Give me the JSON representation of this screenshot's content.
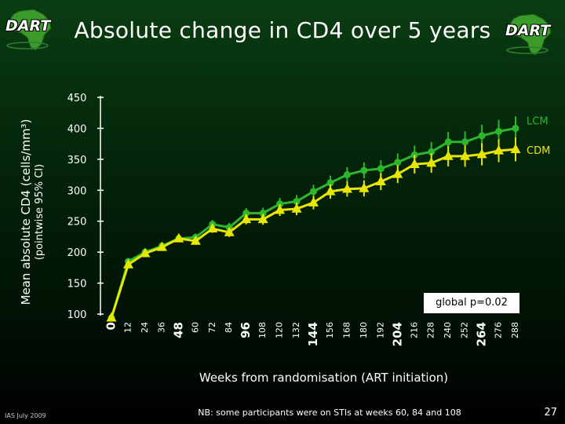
{
  "slide": {
    "title": "Absolute change in CD4 over 5 years",
    "logo_text": "DART",
    "footer_left": "IAS July 2009",
    "footer_note": "NB: some participants were on STIs at weeks 60, 84 and 108",
    "page_number": "27"
  },
  "chart_data": {
    "type": "line",
    "title": "Absolute change in CD4 over 5 years",
    "xlabel": "Weeks from randomisation (ART initiation)",
    "ylabel": "Mean absolute CD4 (cells/mm³)",
    "ylabel_sub": "(pointwise 95% CI)",
    "ylim": [
      100,
      450
    ],
    "yticks": [
      100,
      150,
      200,
      250,
      300,
      350,
      400,
      450
    ],
    "x": [
      0,
      12,
      24,
      36,
      48,
      60,
      72,
      84,
      96,
      108,
      120,
      132,
      144,
      156,
      168,
      180,
      192,
      204,
      216,
      228,
      240,
      252,
      264,
      276,
      288
    ],
    "xtick_labels": [
      "0",
      "12",
      "24",
      "36",
      "48",
      "60",
      "72",
      "84",
      "96",
      "108",
      "120",
      "132",
      "144",
      "156",
      "168",
      "180",
      "192",
      "204",
      "216",
      "228",
      "240",
      "252",
      "264",
      "276",
      "288"
    ],
    "xticks_bold": [
      "0",
      "48",
      "96",
      "144",
      "204",
      "264"
    ],
    "series": [
      {
        "name": "LCM",
        "color": "#2db52d",
        "marker": "circle",
        "values": [
          94,
          185,
          200,
          210,
          222,
          224,
          245,
          240,
          263,
          263,
          278,
          282,
          298,
          312,
          325,
          332,
          335,
          345,
          357,
          362,
          378,
          378,
          388,
          395,
          400
        ]
      },
      {
        "name": "CDM",
        "color": "#e6e600",
        "marker": "triangle",
        "values": [
          94,
          180,
          198,
          208,
          222,
          218,
          238,
          232,
          253,
          253,
          268,
          270,
          280,
          298,
          302,
          303,
          314,
          326,
          342,
          344,
          355,
          355,
          358,
          364,
          366
        ]
      }
    ],
    "annotation": "global p=0.02"
  }
}
